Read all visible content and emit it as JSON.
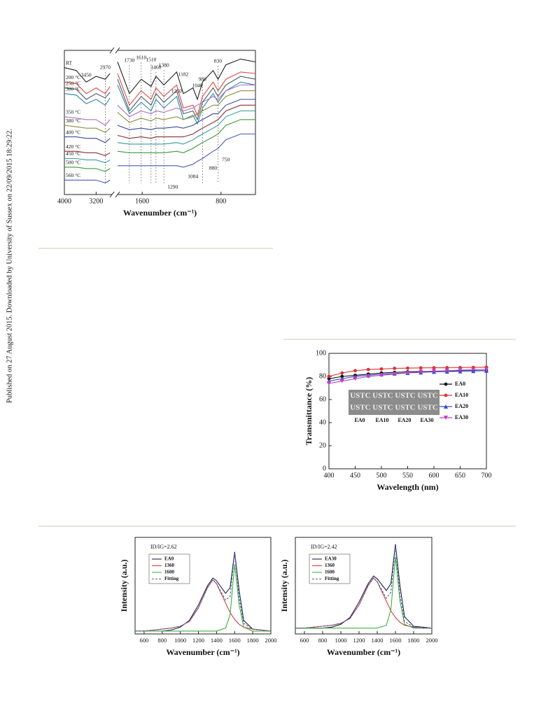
{
  "side_note": "Published on 27 August 2015. Downloaded by University of Sussex on 22/09/2015 18:29:22.",
  "chart_data": [
    {
      "type": "line",
      "x_label": "Wavenumber (cm⁻¹)",
      "xlim": [
        4000,
        450
      ],
      "x_break": [
        2800,
        1850
      ],
      "xticks": [
        4000,
        3200,
        1600,
        800
      ],
      "ylim": [
        0,
        100
      ],
      "series_labels": "inline",
      "x": [
        4000,
        3700,
        3450,
        3200,
        2970,
        2850,
        1850,
        1730,
        1610,
        1510,
        1460,
        1380,
        1250,
        1182,
        1084,
        1040,
        988,
        880,
        830,
        750,
        600,
        450
      ],
      "series": [
        {
          "name": "RT",
          "color": "#222222",
          "values": [
            88,
            86,
            78,
            82,
            80,
            84,
            92,
            70,
            80,
            75,
            82,
            76,
            85,
            70,
            74,
            66,
            78,
            86,
            80,
            90,
            94,
            92
          ]
        },
        {
          "name": "200 °C",
          "color": "#e04848",
          "values": [
            78,
            77,
            70,
            74,
            70,
            75,
            84,
            62,
            72,
            66,
            74,
            68,
            76,
            60,
            62,
            55,
            68,
            78,
            72,
            80,
            85,
            84
          ]
        },
        {
          "name": "250 °C",
          "color": "#4a5a60",
          "values": [
            74,
            73,
            66,
            70,
            67,
            71,
            80,
            58,
            68,
            62,
            70,
            64,
            72,
            56,
            58,
            52,
            64,
            74,
            68,
            76,
            82,
            80
          ]
        },
        {
          "name": "300 °C",
          "color": "#2f86a8",
          "values": [
            70,
            69,
            63,
            66,
            62,
            67,
            76,
            56,
            64,
            58,
            66,
            60,
            68,
            52,
            55,
            49,
            60,
            70,
            64,
            72,
            78,
            76
          ]
        },
        {
          "name": "350 °C",
          "color": "#b070c0",
          "values": [
            54,
            53,
            52,
            52,
            48,
            52,
            62,
            54,
            58,
            56,
            58,
            57,
            60,
            58,
            60,
            62,
            64,
            68,
            66,
            72,
            76,
            76
          ]
        },
        {
          "name": "380 °C",
          "color": "#8a9040",
          "values": [
            48,
            47,
            46,
            46,
            43,
            46,
            57,
            50,
            53,
            51,
            53,
            52,
            54,
            52,
            54,
            56,
            58,
            62,
            62,
            68,
            72,
            72
          ]
        },
        {
          "name": "400 °C",
          "color": "#3a4a9a",
          "values": [
            40,
            40,
            39,
            39,
            36,
            39,
            48,
            45,
            46,
            45,
            46,
            46,
            47,
            46,
            48,
            50,
            52,
            56,
            56,
            62,
            66,
            66
          ]
        },
        {
          "name": "420 °C",
          "color": "#8a3030",
          "values": [
            30,
            30,
            29,
            29,
            27,
            29,
            41,
            39,
            40,
            39,
            40,
            40,
            40,
            40,
            42,
            44,
            46,
            50,
            52,
            58,
            62,
            62
          ]
        },
        {
          "name": "450 °C",
          "color": "#3a9a9a",
          "values": [
            25,
            25,
            24,
            24,
            22,
            24,
            36,
            35,
            35,
            35,
            35,
            35,
            36,
            35,
            38,
            40,
            42,
            46,
            48,
            54,
            58,
            58
          ]
        },
        {
          "name": "500 °C",
          "color": "#3a9a3a",
          "values": [
            19,
            19,
            18,
            18,
            16,
            18,
            30,
            29,
            29,
            29,
            29,
            29,
            30,
            29,
            32,
            34,
            36,
            40,
            42,
            48,
            52,
            52
          ]
        },
        {
          "name": "560 °C",
          "color": "#4a5ac0",
          "values": [
            10,
            10,
            10,
            10,
            8,
            10,
            20,
            20,
            20,
            20,
            20,
            20,
            20,
            19,
            21,
            23,
            25,
            30,
            32,
            38,
            42,
            42
          ]
        }
      ],
      "peak_labels": [
        3450,
        2970,
        1730,
        1610,
        1510,
        1460,
        1380,
        1250,
        1182,
        1040,
        988,
        830,
        1290,
        1084,
        880,
        750
      ]
    },
    {
      "type": "line",
      "x_label": "Wavelength (nm)",
      "y_label": "Transmittance (%)",
      "xlim": [
        400,
        700
      ],
      "xticks": [
        400,
        450,
        500,
        550,
        600,
        650,
        700
      ],
      "ylim": [
        0,
        100
      ],
      "yticks": [
        0,
        20,
        40,
        60,
        80,
        100
      ],
      "legend": "right",
      "x": [
        400,
        425,
        450,
        475,
        500,
        525,
        550,
        575,
        600,
        625,
        650,
        675,
        700
      ],
      "series": [
        {
          "name": "EA0",
          "color": "#111111",
          "marker": "circle",
          "values": [
            78,
            80,
            81,
            82,
            83,
            83.5,
            84,
            84.3,
            84.5,
            84.7,
            84.8,
            85,
            85
          ]
        },
        {
          "name": "EA10",
          "color": "#e03030",
          "marker": "circle",
          "values": [
            80,
            83,
            85,
            86,
            86.5,
            87,
            87.2,
            87.4,
            87.5,
            87.6,
            87.7,
            87.8,
            88
          ]
        },
        {
          "name": "EA20",
          "color": "#3050d0",
          "marker": "triangle",
          "values": [
            76,
            78,
            80,
            81,
            82,
            82.5,
            83,
            83.5,
            84,
            84.2,
            84.5,
            84.7,
            85
          ]
        },
        {
          "name": "EA30",
          "color": "#c040c0",
          "marker": "triangle-down",
          "values": [
            74,
            76,
            78,
            80,
            81,
            82,
            83,
            84,
            84.5,
            85,
            85.5,
            85.8,
            86
          ]
        }
      ],
      "inset_rows": [
        "USTC USTC USTC USTC",
        "USTC USTC USTC USTC"
      ],
      "inset_labels": [
        "EA0",
        "EA10",
        "EA20",
        "EA30"
      ]
    },
    {
      "type": "line",
      "x_label": "Wavenumber (cm⁻¹)",
      "y_label": "Intensity (a.u.)",
      "ratio_label": "ID/IG=2.62",
      "xlim": [
        500,
        2000
      ],
      "xticks": [
        600,
        800,
        1000,
        1200,
        1400,
        1600,
        1800,
        2000
      ],
      "ylim": [
        0,
        1
      ],
      "legend": "upper left",
      "x": [
        500,
        600,
        700,
        800,
        900,
        1000,
        1100,
        1200,
        1300,
        1360,
        1400,
        1500,
        1550,
        1600,
        1650,
        1700,
        1800,
        1900,
        2000
      ],
      "series": [
        {
          "name": "EA0",
          "color": "#22224a",
          "values": [
            0.03,
            0.03,
            0.03,
            0.03,
            0.04,
            0.07,
            0.14,
            0.3,
            0.5,
            0.58,
            0.55,
            0.42,
            0.48,
            0.85,
            0.45,
            0.14,
            0.05,
            0.04,
            0.03
          ]
        },
        {
          "name": "1360",
          "color": "#d04040",
          "values": [
            0.03,
            0.03,
            0.04,
            0.05,
            0.06,
            0.08,
            0.13,
            0.27,
            0.48,
            0.56,
            0.52,
            0.32,
            0.22,
            0.15,
            0.1,
            0.07,
            0.05,
            0.04,
            0.03
          ]
        },
        {
          "name": "1600",
          "color": "#40b040",
          "values": [
            0.03,
            0.03,
            0.03,
            0.03,
            0.03,
            0.03,
            0.03,
            0.03,
            0.03,
            0.03,
            0.03,
            0.06,
            0.2,
            0.72,
            0.3,
            0.07,
            0.03,
            0.03,
            0.03
          ]
        },
        {
          "name": "Fitting",
          "color": "#5060a0",
          "line_style": "dashed",
          "values": [
            0.03,
            0.03,
            0.04,
            0.05,
            0.06,
            0.08,
            0.13,
            0.27,
            0.48,
            0.56,
            0.52,
            0.35,
            0.39,
            0.84,
            0.37,
            0.11,
            0.05,
            0.04,
            0.03
          ]
        }
      ]
    },
    {
      "type": "line",
      "x_label": "Wavenumber (cm⁻¹)",
      "y_label": "Intensity (a.u.)",
      "ratio_label": "ID/IG=2.42",
      "xlim": [
        500,
        2000
      ],
      "xticks": [
        600,
        800,
        1000,
        1200,
        1400,
        1600,
        1800,
        2000
      ],
      "ylim": [
        0,
        1
      ],
      "legend": "upper left",
      "x": [
        500,
        600,
        700,
        800,
        900,
        1000,
        1100,
        1200,
        1300,
        1360,
        1400,
        1500,
        1550,
        1600,
        1650,
        1700,
        1800,
        1900,
        2000
      ],
      "series": [
        {
          "name": "EA30",
          "color": "#22224a",
          "values": [
            0.06,
            0.06,
            0.06,
            0.06,
            0.07,
            0.1,
            0.17,
            0.33,
            0.52,
            0.6,
            0.57,
            0.45,
            0.52,
            0.93,
            0.5,
            0.18,
            0.08,
            0.07,
            0.06
          ]
        },
        {
          "name": "1360",
          "color": "#d04040",
          "values": [
            0.06,
            0.06,
            0.07,
            0.08,
            0.09,
            0.11,
            0.16,
            0.3,
            0.5,
            0.58,
            0.54,
            0.34,
            0.24,
            0.17,
            0.12,
            0.09,
            0.07,
            0.06,
            0.06
          ]
        },
        {
          "name": "1600",
          "color": "#40b040",
          "values": [
            0.06,
            0.06,
            0.06,
            0.06,
            0.06,
            0.06,
            0.06,
            0.06,
            0.06,
            0.06,
            0.06,
            0.09,
            0.25,
            0.8,
            0.34,
            0.1,
            0.06,
            0.06,
            0.06
          ]
        },
        {
          "name": "Fitting",
          "color": "#5060a0",
          "line_style": "dashed",
          "values": [
            0.06,
            0.06,
            0.07,
            0.08,
            0.09,
            0.11,
            0.16,
            0.3,
            0.5,
            0.58,
            0.54,
            0.37,
            0.43,
            0.91,
            0.4,
            0.13,
            0.07,
            0.06,
            0.06
          ]
        }
      ]
    }
  ]
}
